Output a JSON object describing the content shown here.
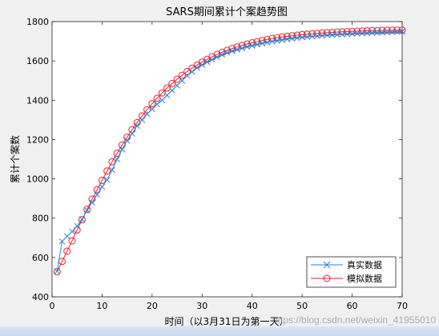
{
  "chart_data": {
    "type": "line",
    "title": "SARS期间累计个案趋势图",
    "xlabel": "时间（以3月31日为第一天）",
    "ylabel": "累计个案数",
    "xlim": [
      0,
      70
    ],
    "ylim": [
      400,
      1800
    ],
    "xticks": [
      0,
      10,
      20,
      30,
      40,
      50,
      60,
      70
    ],
    "yticks": [
      400,
      600,
      800,
      1000,
      1200,
      1400,
      1600,
      1800
    ],
    "grid": false,
    "legend_position": "bottom-right",
    "series": [
      {
        "name": "真实数据",
        "color": "#2e7fd4",
        "marker": "x",
        "x": [
          1,
          2,
          3,
          4,
          5,
          6,
          7,
          8,
          9,
          10,
          11,
          12,
          13,
          14,
          15,
          16,
          17,
          18,
          19,
          20,
          21,
          22,
          23,
          24,
          25,
          26,
          27,
          28,
          29,
          30,
          31,
          32,
          33,
          34,
          35,
          36,
          37,
          38,
          39,
          40,
          41,
          42,
          43,
          44,
          45,
          46,
          47,
          48,
          49,
          50,
          51,
          52,
          53,
          54,
          55,
          56,
          57,
          58,
          59,
          60,
          61,
          62,
          63,
          64,
          65,
          66,
          67,
          68,
          69,
          70
        ],
        "y": [
          530,
          682,
          708,
          732,
          760,
          795,
          840,
          880,
          920,
          960,
          995,
          1045,
          1100,
          1150,
          1195,
          1230,
          1270,
          1300,
          1330,
          1355,
          1380,
          1400,
          1425,
          1450,
          1475,
          1500,
          1525,
          1545,
          1565,
          1580,
          1595,
          1607,
          1620,
          1632,
          1642,
          1650,
          1658,
          1665,
          1672,
          1678,
          1684,
          1689,
          1694,
          1699,
          1703,
          1707,
          1711,
          1714,
          1717,
          1720,
          1722,
          1724,
          1727,
          1729,
          1731,
          1733,
          1734,
          1735,
          1737,
          1738,
          1740,
          1741,
          1742,
          1743,
          1744,
          1745,
          1746,
          1747,
          1748,
          1749
        ]
      },
      {
        "name": "模拟数据",
        "color": "#e8222b",
        "marker": "o",
        "x": [
          1,
          2,
          3,
          4,
          5,
          6,
          7,
          8,
          9,
          10,
          11,
          12,
          13,
          14,
          15,
          16,
          17,
          18,
          19,
          20,
          21,
          22,
          23,
          24,
          25,
          26,
          27,
          28,
          29,
          30,
          31,
          32,
          33,
          34,
          35,
          36,
          37,
          38,
          39,
          40,
          41,
          42,
          43,
          44,
          45,
          46,
          47,
          48,
          49,
          50,
          51,
          52,
          53,
          54,
          55,
          56,
          57,
          58,
          59,
          60,
          61,
          62,
          63,
          64,
          65,
          66,
          67,
          68,
          69,
          70
        ],
        "y": [
          527,
          580,
          632,
          685,
          740,
          792,
          845,
          897,
          945,
          992,
          1040,
          1087,
          1130,
          1172,
          1212,
          1250,
          1286,
          1320,
          1352,
          1382,
          1410,
          1437,
          1462,
          1485,
          1507,
          1527,
          1546,
          1563,
          1579,
          1594,
          1608,
          1621,
          1633,
          1644,
          1654,
          1663,
          1671,
          1679,
          1686,
          1692,
          1698,
          1704,
          1709,
          1714,
          1718,
          1722,
          1725,
          1728,
          1731,
          1734,
          1736,
          1738,
          1740,
          1742,
          1744,
          1745,
          1747,
          1748,
          1749,
          1750,
          1751,
          1752,
          1753,
          1754,
          1754,
          1755,
          1756,
          1756,
          1757,
          1757
        ]
      }
    ]
  },
  "watermark_text": "https://blog.csdn.net/weixin_41955010"
}
